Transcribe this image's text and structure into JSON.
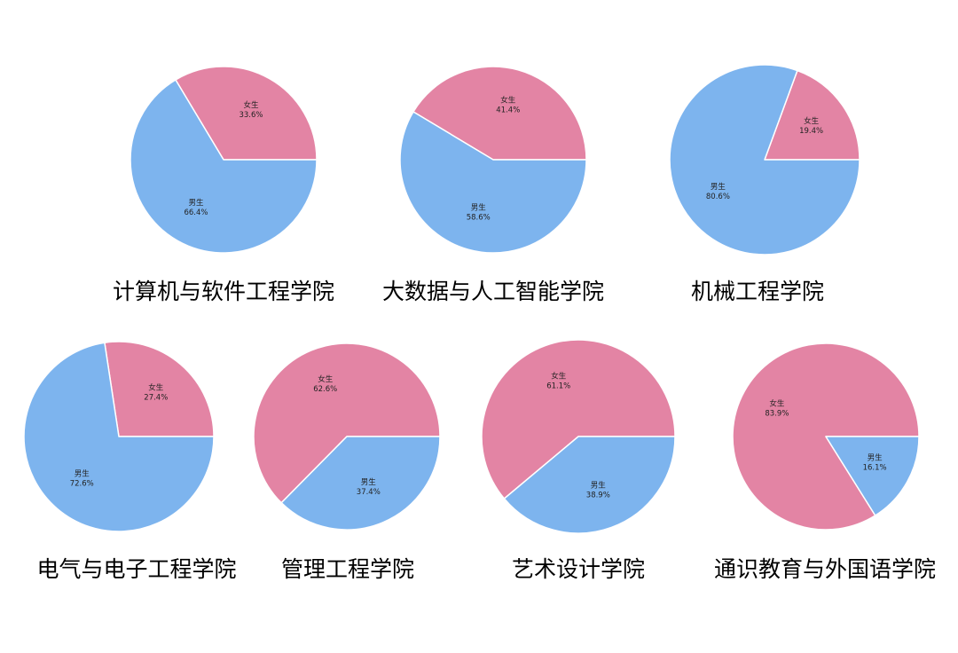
{
  "palette": {
    "female": "#E384A4",
    "male": "#7DB4EE",
    "edge": "#ffffff",
    "label": "#222222",
    "title": "#000000"
  },
  "chart_data": [
    {
      "type": "pie",
      "title": "计算机与软件工程学院",
      "slices": [
        {
          "key": "female",
          "label": "女生",
          "value": 33.6,
          "pct_text": "33.6%"
        },
        {
          "key": "male",
          "label": "男生",
          "value": 66.4,
          "pct_text": "66.4%"
        }
      ]
    },
    {
      "type": "pie",
      "title": "大数据与人工智能学院",
      "slices": [
        {
          "key": "female",
          "label": "女生",
          "value": 41.4,
          "pct_text": "41.4%"
        },
        {
          "key": "male",
          "label": "男生",
          "value": 58.6,
          "pct_text": "58.6%"
        }
      ]
    },
    {
      "type": "pie",
      "title": "机械工程学院",
      "slices": [
        {
          "key": "female",
          "label": "女生",
          "value": 19.4,
          "pct_text": "19.4%"
        },
        {
          "key": "male",
          "label": "男生",
          "value": 80.6,
          "pct_text": "80.6%"
        }
      ]
    },
    {
      "type": "pie",
      "title": "电气与电子工程学院",
      "slices": [
        {
          "key": "female",
          "label": "女生",
          "value": 27.4,
          "pct_text": "27.4%"
        },
        {
          "key": "male",
          "label": "男生",
          "value": 72.6,
          "pct_text": "72.6%"
        }
      ]
    },
    {
      "type": "pie",
      "title": "管理工程学院",
      "slices": [
        {
          "key": "female",
          "label": "女生",
          "value": 62.6,
          "pct_text": "62.6%"
        },
        {
          "key": "male",
          "label": "男生",
          "value": 37.4,
          "pct_text": "37.4%"
        }
      ]
    },
    {
      "type": "pie",
      "title": "艺术设计学院",
      "slices": [
        {
          "key": "female",
          "label": "女生",
          "value": 61.1,
          "pct_text": "61.1%"
        },
        {
          "key": "male",
          "label": "男生",
          "value": 38.9,
          "pct_text": "38.9%"
        }
      ]
    },
    {
      "type": "pie",
      "title": "通识教育与外国语学院",
      "slices": [
        {
          "key": "female",
          "label": "女生",
          "value": 83.9,
          "pct_text": "83.9%"
        },
        {
          "key": "male",
          "label": "男生",
          "value": 16.1,
          "pct_text": "16.1%"
        }
      ]
    }
  ]
}
